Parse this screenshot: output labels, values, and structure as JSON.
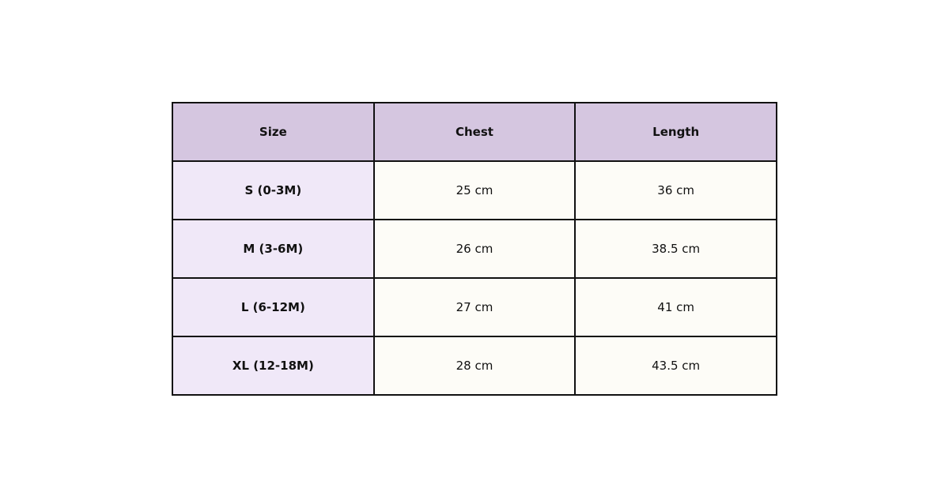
{
  "table": {
    "headers": [
      "Size",
      "Chest",
      "Length"
    ],
    "rows": [
      [
        "S (0-3M)",
        "25 cm",
        "36 cm"
      ],
      [
        "M (3-6M)",
        "26 cm",
        "38.5 cm"
      ],
      [
        "L (6-12M)",
        "27 cm",
        "41 cm"
      ],
      [
        "XL (12-18M)",
        "28 cm",
        "43.5 cm"
      ]
    ]
  },
  "colors": {
    "header": "#d5c6e0",
    "size_column": "#f0e8f8",
    "value_cells": "#fdfcf7",
    "border": "#111111"
  }
}
